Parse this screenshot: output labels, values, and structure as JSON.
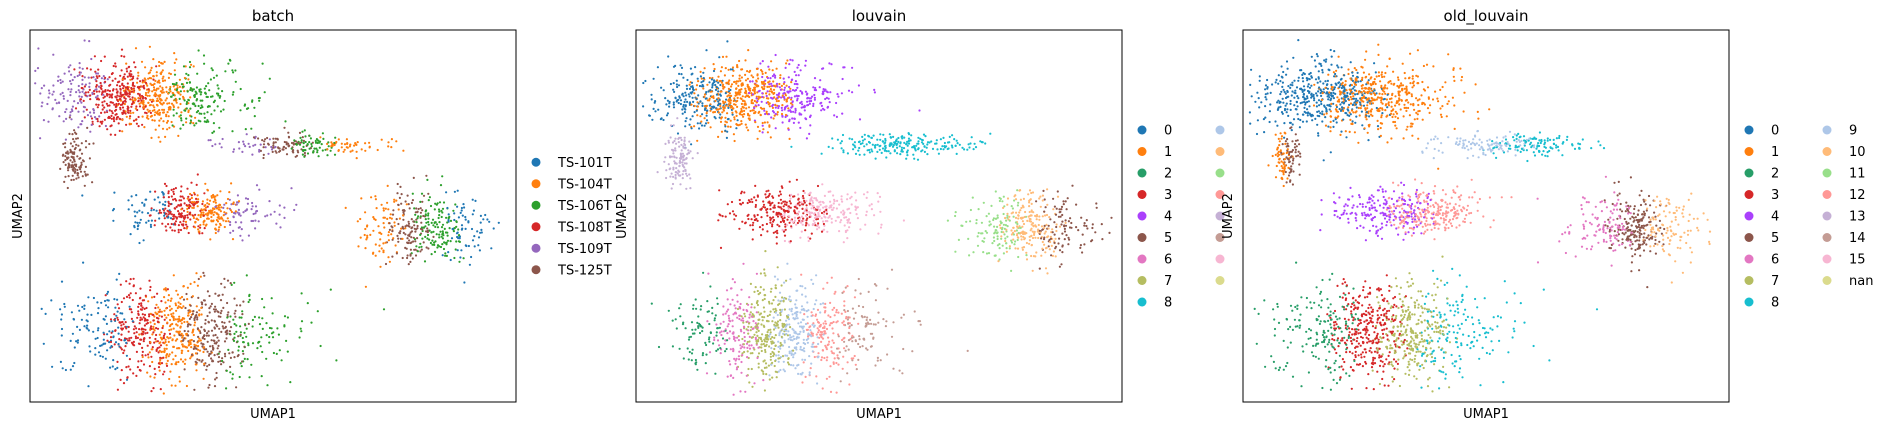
{
  "chart_data": [
    {
      "type": "scatter",
      "title": "batch",
      "xlabel": "UMAP1",
      "ylabel": "UMAP2",
      "grid": false,
      "legend_placement": "right",
      "series": [
        {
          "name": "TS-101T",
          "color": "#1f77b4"
        },
        {
          "name": "TS-104T",
          "color": "#ff7f0e"
        },
        {
          "name": "TS-106T",
          "color": "#2ca02c"
        },
        {
          "name": "TS-108T",
          "color": "#d62728"
        },
        {
          "name": "TS-109T",
          "color": "#9467bd"
        },
        {
          "name": "TS-125T",
          "color": "#8c564b"
        }
      ]
    },
    {
      "type": "scatter",
      "title": "louvain",
      "xlabel": "UMAP1",
      "ylabel": "UMAP2",
      "grid": false,
      "legend_placement": "right",
      "series": [
        {
          "name": "0",
          "color": "#1f77b4"
        },
        {
          "name": "1",
          "color": "#ff7f0e"
        },
        {
          "name": "2",
          "color": "#279e68"
        },
        {
          "name": "3",
          "color": "#d62728"
        },
        {
          "name": "4",
          "color": "#aa40fc"
        },
        {
          "name": "5",
          "color": "#8c564b"
        },
        {
          "name": "6",
          "color": "#e377c2"
        },
        {
          "name": "7",
          "color": "#b5bd61"
        },
        {
          "name": "8",
          "color": "#17becf"
        },
        {
          "name": "",
          "color": "#aec7e8"
        },
        {
          "name": "",
          "color": "#ffbb78"
        },
        {
          "name": "",
          "color": "#98df8a"
        },
        {
          "name": "",
          "color": "#ff9896"
        },
        {
          "name": "",
          "color": "#c5b0d5"
        },
        {
          "name": "",
          "color": "#c49c94"
        },
        {
          "name": "",
          "color": "#f7b6d2"
        },
        {
          "name": "",
          "color": "#dbdb8d"
        }
      ]
    },
    {
      "type": "scatter",
      "title": "old_louvain",
      "xlabel": "UMAP1",
      "ylabel": "UMAP2",
      "grid": false,
      "legend_placement": "right",
      "series": [
        {
          "name": "0",
          "color": "#1f77b4"
        },
        {
          "name": "1",
          "color": "#ff7f0e"
        },
        {
          "name": "2",
          "color": "#279e68"
        },
        {
          "name": "3",
          "color": "#d62728"
        },
        {
          "name": "4",
          "color": "#aa40fc"
        },
        {
          "name": "5",
          "color": "#8c564b"
        },
        {
          "name": "6",
          "color": "#e377c2"
        },
        {
          "name": "7",
          "color": "#b5bd61"
        },
        {
          "name": "8",
          "color": "#17becf"
        },
        {
          "name": "9",
          "color": "#aec7e8"
        },
        {
          "name": "10",
          "color": "#ffbb78"
        },
        {
          "name": "11",
          "color": "#98df8a"
        },
        {
          "name": "12",
          "color": "#ff9896"
        },
        {
          "name": "13",
          "color": "#c5b0d5"
        },
        {
          "name": "14",
          "color": "#c49c94"
        },
        {
          "name": "15",
          "color": "#f7b6d2"
        },
        {
          "name": "nan",
          "color": "#dbdb8d"
        }
      ]
    }
  ]
}
